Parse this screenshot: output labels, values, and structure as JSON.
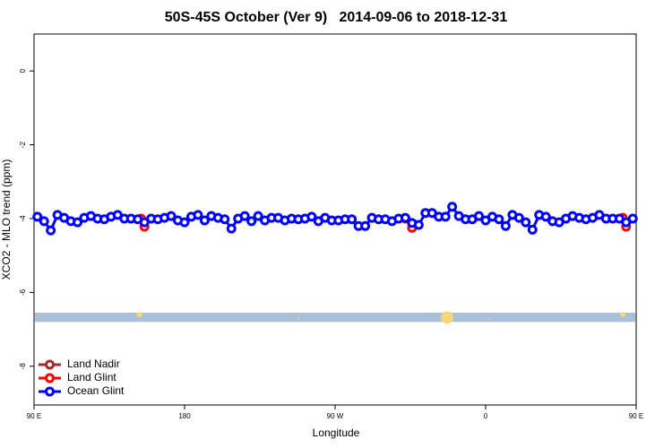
{
  "chart_data": {
    "type": "line",
    "title": "50S-45S October (Ver 9)   2014-09-06 to 2018-12-31",
    "x_label": "Longitude",
    "y_label": "XCO2 - MLO trend (ppm)",
    "xlim": [
      90,
      450
    ],
    "ylim": [
      -9.05,
      1.0
    ],
    "xticks": [
      {
        "value": 90,
        "label": "90 E"
      },
      180,
      {
        "value": 270,
        "label": "90 W"
      },
      {
        "value": 360,
        "label": "0"
      },
      {
        "value": 450,
        "label": "90 E"
      }
    ],
    "xticks_extra_note_free": null,
    "yticks": [
      0,
      -2,
      -4,
      -6,
      -8
    ],
    "legend": "bottom-left",
    "series": [
      {
        "name": "Land Nadir",
        "color": "#a52a2a",
        "x": [],
        "values": []
      },
      {
        "name": "Land Glint",
        "color": "#ff0000",
        "x": [
          154,
          156,
          250,
          312,
          316,
          380,
          442,
          444
        ],
        "values": [
          -4.0,
          -4.22,
          null,
          -4.0,
          -4.25,
          null,
          -3.98,
          -4.22
        ]
      },
      {
        "name": "Ocean Glint",
        "color": "#0000ff",
        "x": [
          92,
          96,
          100,
          104,
          108,
          112,
          116,
          120,
          124,
          128,
          132,
          136,
          140,
          144,
          148,
          152,
          156,
          160,
          164,
          168,
          172,
          176,
          180,
          184,
          188,
          192,
          196,
          200,
          204,
          208,
          212,
          216,
          220,
          224,
          228,
          232,
          236,
          240,
          244,
          248,
          252,
          256,
          260,
          264,
          268,
          272,
          276,
          280,
          284,
          288,
          292,
          296,
          300,
          304,
          308,
          312,
          316,
          320,
          324,
          328,
          332,
          336,
          340,
          344,
          348,
          352,
          356,
          360,
          364,
          368,
          372,
          376,
          380,
          384,
          388,
          392,
          396,
          400,
          404,
          408,
          412,
          416,
          420,
          424,
          428,
          432,
          436,
          440,
          444,
          448
        ],
        "values": [
          -3.95,
          -4.07,
          -4.32,
          -3.9,
          -3.98,
          -4.07,
          -4.1,
          -3.98,
          -3.93,
          -4.0,
          -4.02,
          -3.95,
          -3.9,
          -4.0,
          -4.0,
          -4.02,
          -4.1,
          -4.0,
          -4.02,
          -3.98,
          -3.93,
          -4.05,
          -4.1,
          -3.95,
          -3.9,
          -4.05,
          -3.93,
          -3.98,
          -4.02,
          -4.27,
          -4.0,
          -3.93,
          -4.07,
          -3.93,
          -4.05,
          -3.98,
          -3.98,
          -4.05,
          -4.0,
          -4.02,
          -4.0,
          -3.95,
          -4.07,
          -3.98,
          -4.05,
          -4.05,
          -4.02,
          -4.02,
          -4.2,
          -4.2,
          -3.98,
          -4.02,
          -4.02,
          -4.07,
          -4.0,
          -3.98,
          -4.12,
          -4.17,
          -3.85,
          -3.85,
          -3.95,
          -3.95,
          -3.68,
          -3.93,
          -4.02,
          -4.02,
          -3.93,
          -4.05,
          -3.95,
          -4.02,
          -4.2,
          -3.9,
          -3.98,
          -4.1,
          -4.3,
          -3.9,
          -3.95,
          -4.07,
          -4.1,
          -4.0,
          -3.93,
          -3.98,
          -4.02,
          -3.98,
          -3.9,
          -4.0,
          -4.0,
          -4.0,
          -4.1,
          -4.0
        ]
      }
    ],
    "band": {
      "ylim": [
        -6.55,
        -6.8
      ],
      "color": "#a9bfdc",
      "markers": {
        "color": "#f5d67a",
        "x": [
          153,
          248,
          337,
          362,
          442
        ],
        "values": [
          -6.6,
          -6.7,
          -6.68,
          -6.72,
          -6.6
        ],
        "sizes": [
          3,
          1,
          7,
          1,
          3
        ]
      }
    }
  }
}
